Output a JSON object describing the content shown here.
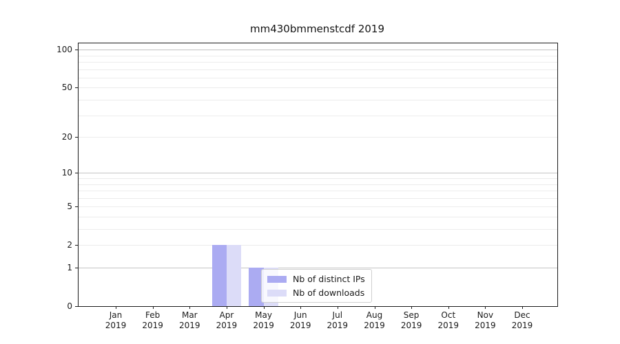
{
  "chart_data": {
    "type": "bar",
    "title": "mm430bmmenstcdf 2019",
    "categories": [
      "Jan 2019",
      "Feb 2019",
      "Mar 2019",
      "Apr 2019",
      "May 2019",
      "Jun 2019",
      "Jul 2019",
      "Aug 2019",
      "Sep 2019",
      "Oct 2019",
      "Nov 2019",
      "Dec 2019"
    ],
    "series": [
      {
        "name": "Nb of distinct IPs",
        "color": "#ababf2",
        "values": [
          0,
          0,
          0,
          2,
          1,
          0,
          0,
          0,
          0,
          0,
          0,
          0
        ]
      },
      {
        "name": "Nb of downloads",
        "color": "#dcdcf8",
        "values": [
          0,
          0,
          0,
          2,
          1,
          0,
          0,
          0,
          0,
          0,
          0,
          0
        ]
      }
    ],
    "yscale": "log1p",
    "ylim": [
      0,
      112
    ],
    "yticks": [
      0,
      1,
      2,
      5,
      10,
      20,
      50,
      100
    ],
    "major_gridlines": [
      1,
      10,
      100
    ],
    "minor_gridlines": [
      2,
      3,
      4,
      5,
      6,
      7,
      8,
      9,
      20,
      30,
      40,
      50,
      60,
      70,
      80,
      90
    ],
    "grid": true,
    "xlabel": "",
    "ylabel": "",
    "legend": {
      "position": "lower-center-inside",
      "entries": [
        "Nb of distinct IPs",
        "Nb of downloads"
      ]
    }
  }
}
